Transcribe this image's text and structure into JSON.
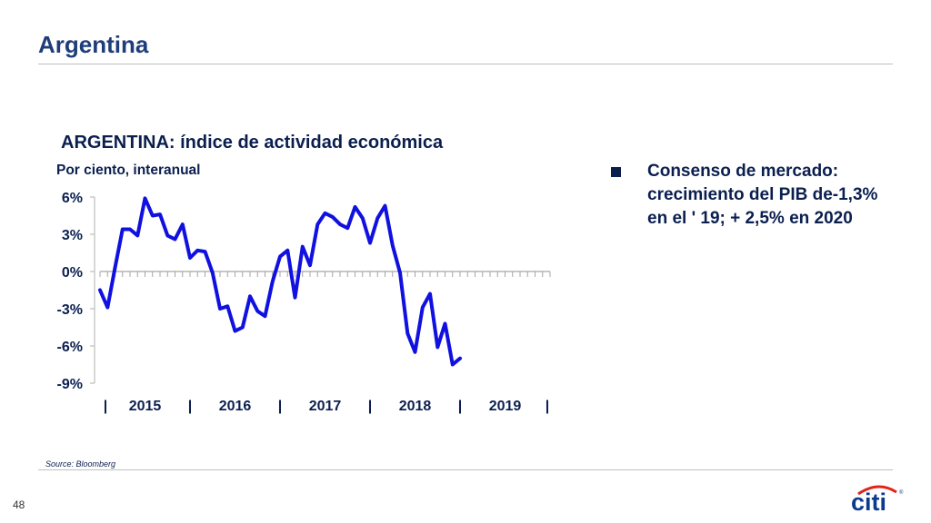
{
  "slide": {
    "title": "Argentina",
    "page_number": "48",
    "source": "Source: Bloomberg",
    "bullet": "Consenso de mercado: crecimiento del PIB de-1,3% en el ' 19; + 2,5% en 2020",
    "logo_text": "citi"
  },
  "colors": {
    "title": "#1f3d7a",
    "text": "#0b1f4f",
    "line": "#1010e0",
    "logo_arc": "#e2231a"
  },
  "chart_data": {
    "type": "line",
    "title": "ARGENTINA: índice de actividad económica",
    "subtitle": "Por ciento, interanual",
    "xlabel": "",
    "ylabel": "",
    "ylim": [
      -9,
      6
    ],
    "yticks": [
      "6%",
      "3%",
      "0%",
      "-3%",
      "-6%",
      "-9%"
    ],
    "ytick_values": [
      6,
      3,
      0,
      -3,
      -6,
      -9
    ],
    "x_period_labels": [
      "|",
      "2015",
      "|",
      "2016",
      "|",
      "2017",
      "|",
      "2018",
      "|",
      "2019",
      "|"
    ],
    "grid": false,
    "x_start": "2015-01",
    "months_shown": 60,
    "series": [
      {
        "values": [
          -1.5,
          -2.9,
          0.3,
          3.4,
          3.4,
          2.9,
          5.9,
          4.5,
          4.6,
          2.9,
          2.6,
          3.8,
          1.1,
          1.7,
          1.6,
          -0.1,
          -3.0,
          -2.8,
          -4.8,
          -4.5,
          -2.0,
          -3.2,
          -3.6,
          -0.8,
          1.2,
          1.7,
          -2.1,
          2.0,
          0.5,
          3.8,
          4.7,
          4.4,
          3.8,
          3.5,
          5.2,
          4.3,
          2.3,
          4.3,
          5.3,
          2.1,
          -0.1,
          -5.0,
          -6.5,
          -2.9,
          -1.8,
          -6.1,
          -4.2,
          -7.5,
          -7.0
        ]
      }
    ]
  }
}
